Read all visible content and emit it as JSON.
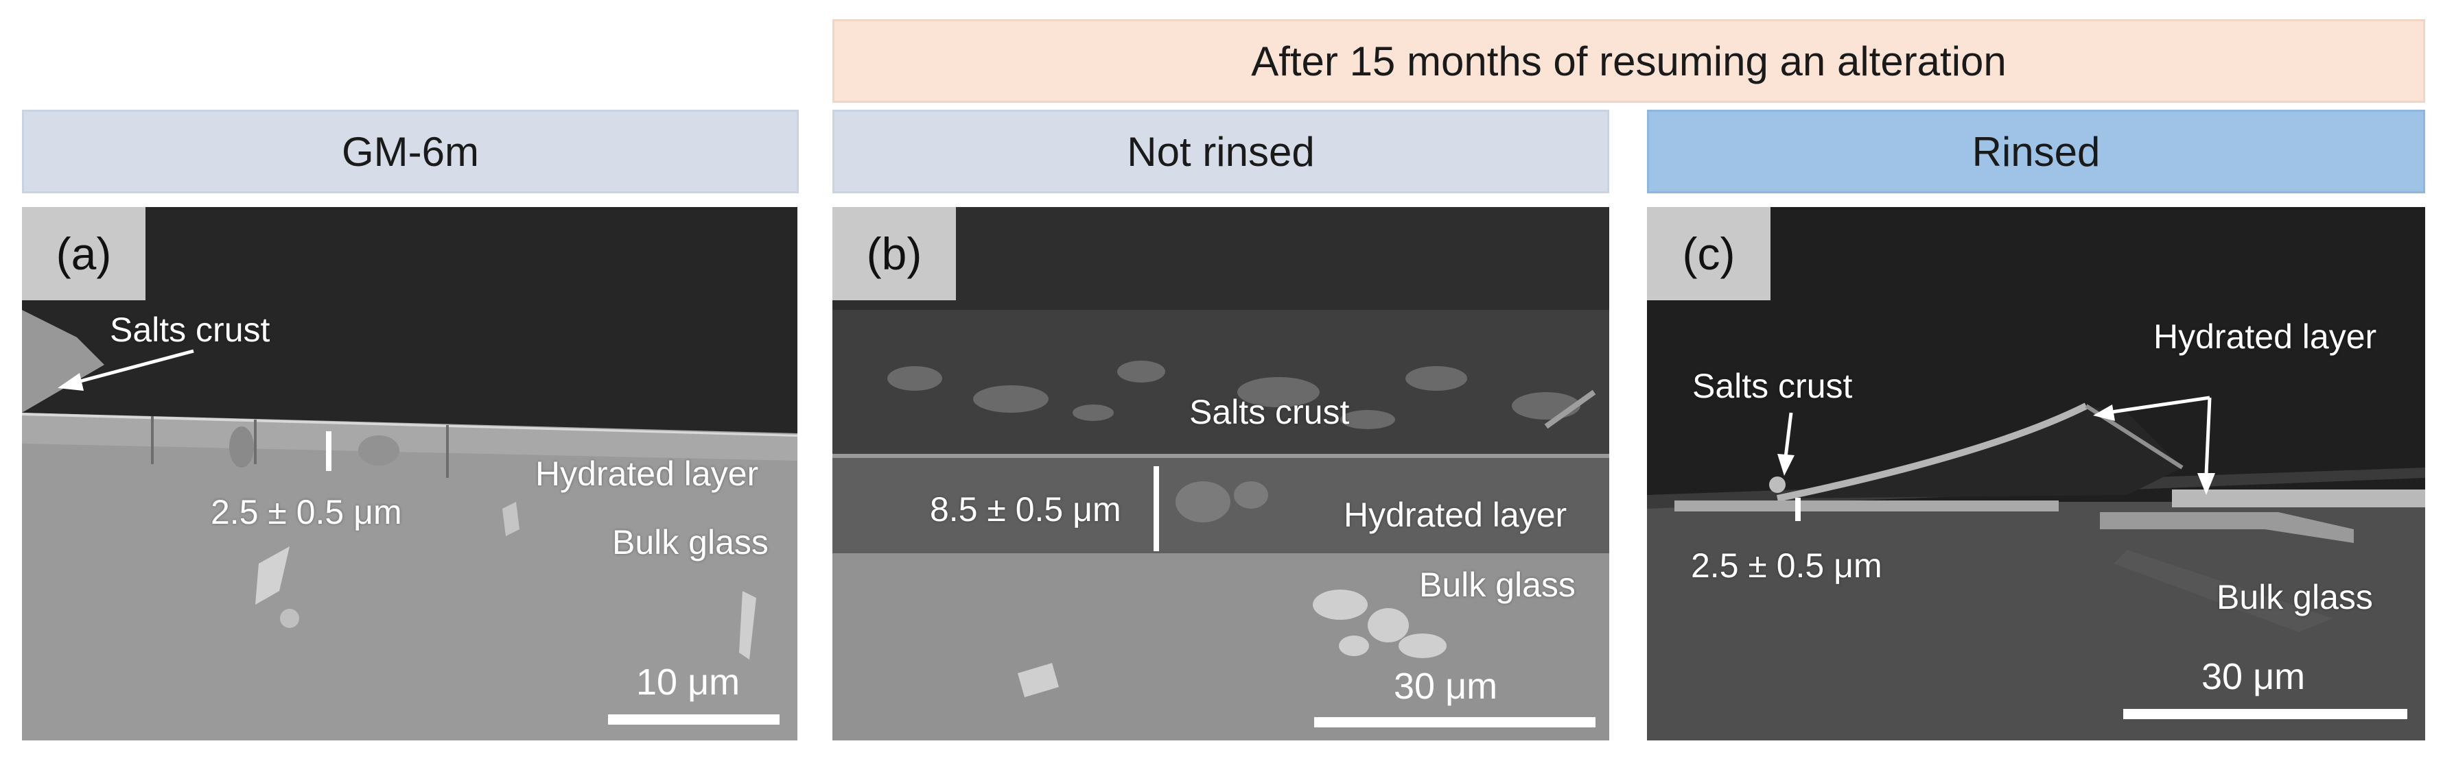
{
  "headers": {
    "top": "After 15 months of resuming an alteration",
    "gm": "GM-6m",
    "not_rinsed": "Not rinsed",
    "rinsed": "Rinsed"
  },
  "panels": {
    "a": {
      "label": "(a)",
      "salts_crust": "Salts crust",
      "hydrated_layer": "Hydrated layer",
      "bulk_glass": "Bulk glass",
      "thickness": "2.5 ± 0.5 μm",
      "scale": "10 μm"
    },
    "b": {
      "label": "(b)",
      "salts_crust": "Salts crust",
      "hydrated_layer": "Hydrated layer",
      "bulk_glass": "Bulk glass",
      "thickness": "8.5 ± 0.5 μm",
      "scale": "30 μm"
    },
    "c": {
      "label": "(c)",
      "salts_crust": "Salts crust",
      "hydrated_layer": "Hydrated layer",
      "bulk_glass": "Bulk glass",
      "thickness": "2.5 ± 0.5 μm",
      "scale": "30 μm"
    }
  },
  "colors": {
    "top_header": "#fbe4d6",
    "gray_header": "#d6dde8",
    "blue_header": "#9ec3e6"
  }
}
